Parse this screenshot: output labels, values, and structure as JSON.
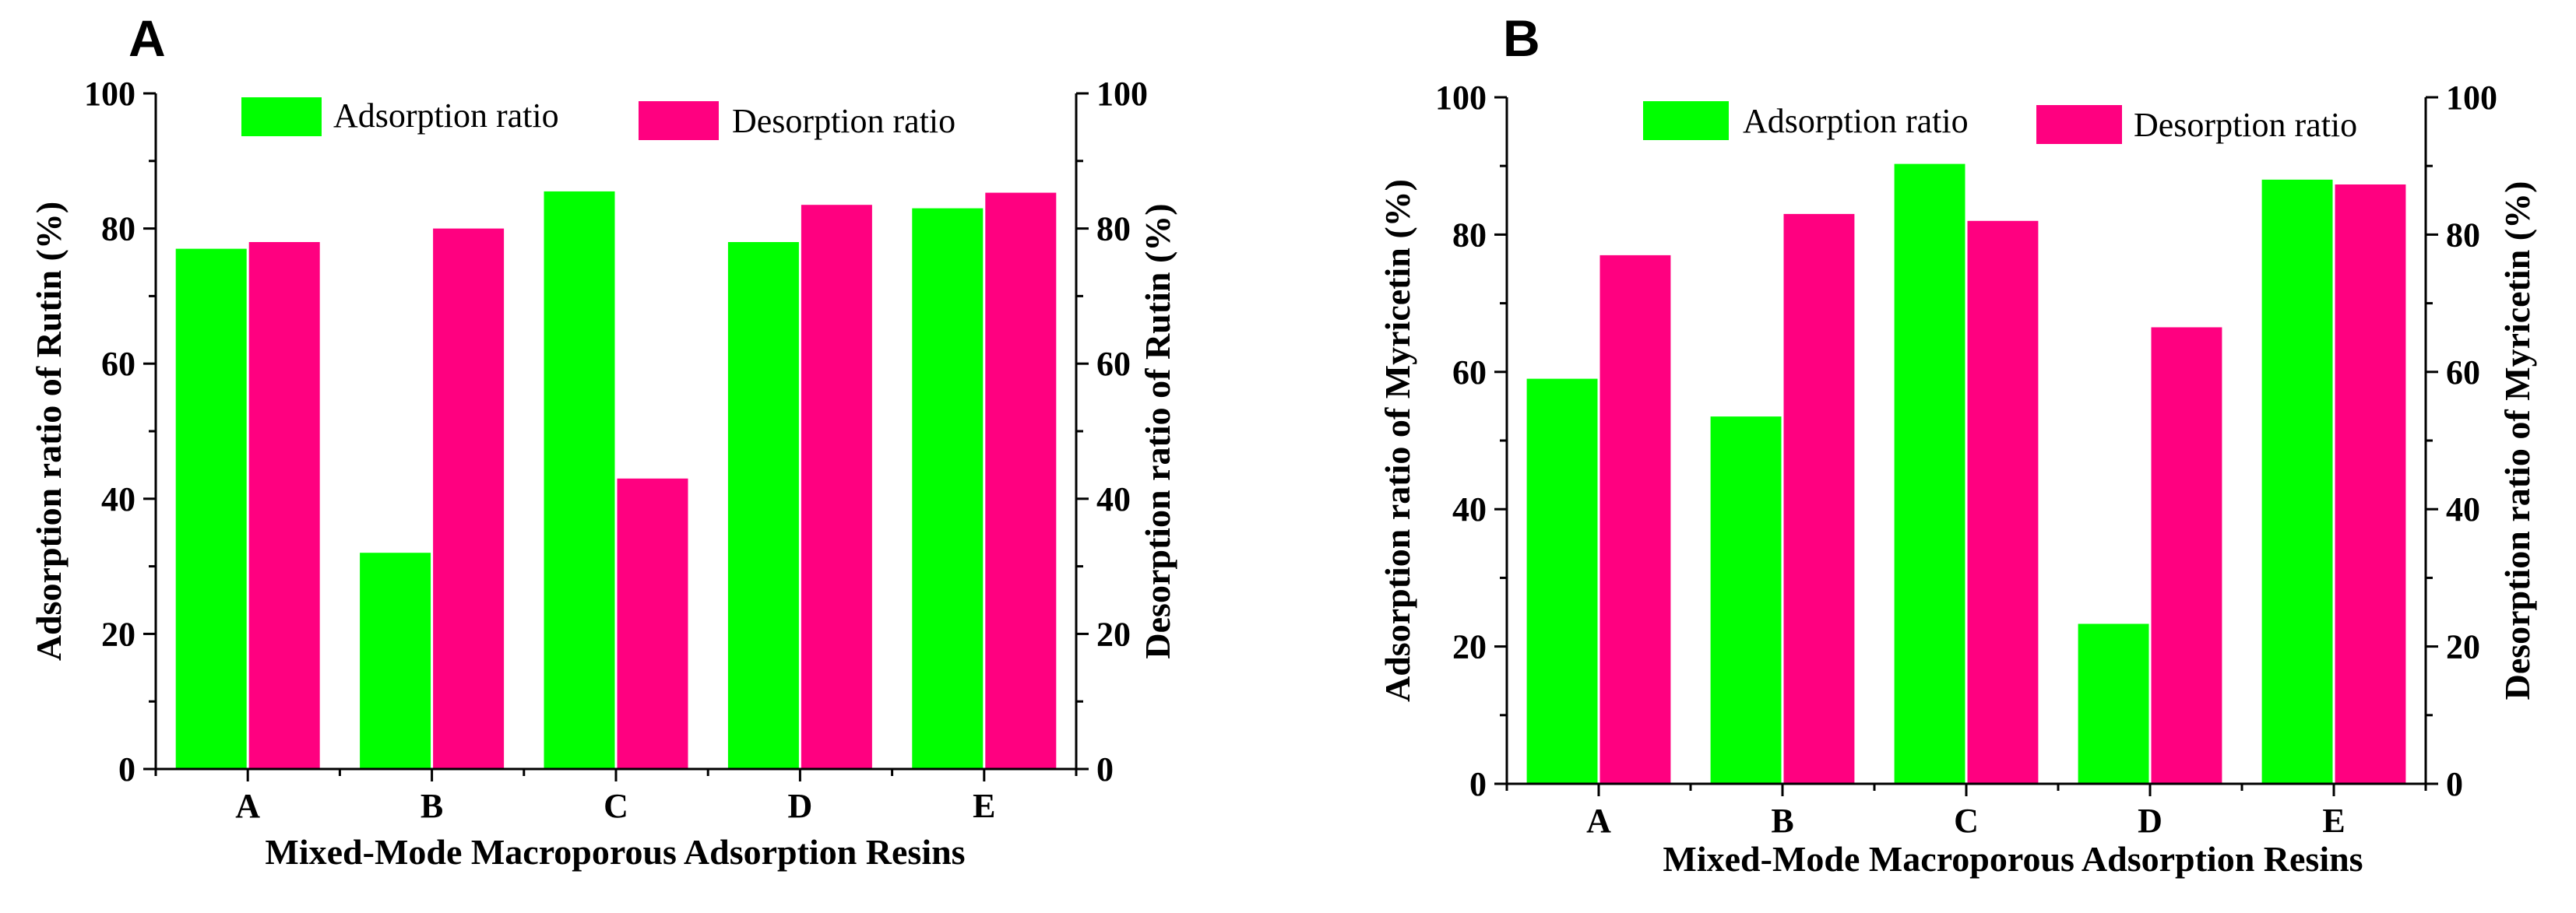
{
  "colors": {
    "adsorption": "#00ff00",
    "desorption": "#ff0080",
    "axis": "#000000"
  },
  "chart_data": [
    {
      "panel": "A",
      "type": "bar",
      "categories": [
        "A",
        "B",
        "C",
        "D",
        "E"
      ],
      "series": [
        {
          "name": "Adsorption ratio",
          "values": [
            77,
            32,
            85.5,
            78,
            83
          ]
        },
        {
          "name": "Desorption ratio",
          "values": [
            78,
            80,
            43,
            83.5,
            85.3
          ]
        }
      ],
      "xlabel": "Mixed-Mode Macroporous Adsorption Resins",
      "ylabel": "Adsorption ratio of Rutin (%)",
      "y2label": "Desorption ratio of Rutin (%)",
      "ylim": [
        0,
        100
      ],
      "y2lim": [
        0,
        100
      ],
      "yticks": [
        0,
        20,
        40,
        60,
        80,
        100
      ],
      "legend": "top-center"
    },
    {
      "panel": "B",
      "type": "bar",
      "categories": [
        "A",
        "B",
        "C",
        "D",
        "E"
      ],
      "series": [
        {
          "name": "Adsorption ratio",
          "values": [
            59,
            53.5,
            90.3,
            23.3,
            88
          ]
        },
        {
          "name": "Desorption ratio",
          "values": [
            77,
            83,
            82,
            66.5,
            87.3
          ]
        }
      ],
      "xlabel": "Mixed-Mode Macroporous Adsorption Resins",
      "ylabel": "Adsorption ratio of Myricetin (%)",
      "y2label": "Desorption ratio of Myricetin (%)",
      "ylim": [
        0,
        100
      ],
      "y2lim": [
        0,
        100
      ],
      "yticks": [
        0,
        20,
        40,
        60,
        80,
        100
      ],
      "legend": "top-center"
    }
  ]
}
